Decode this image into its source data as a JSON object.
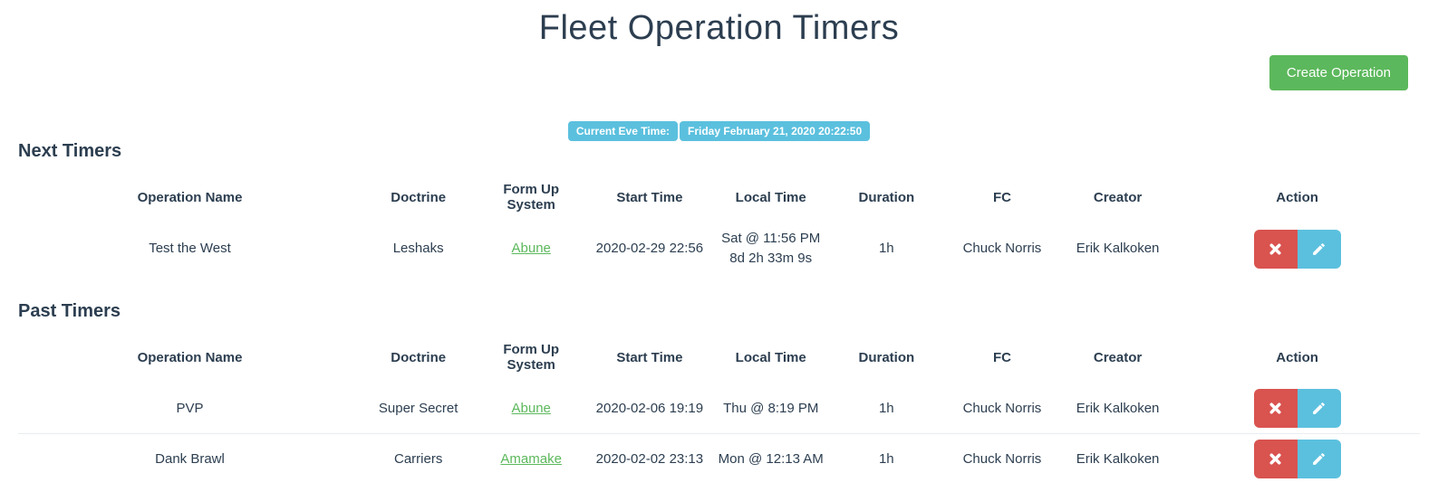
{
  "page": {
    "title": "Fleet Operation Timers"
  },
  "toolbar": {
    "create_button": "Create Operation"
  },
  "eve_time": {
    "label": "Current Eve Time:",
    "value": "Friday February 21, 2020 20:22:50"
  },
  "columns": [
    "Operation Name",
    "Doctrine",
    "Form Up System",
    "Start Time",
    "Local Time",
    "Duration",
    "FC",
    "Creator",
    "Action"
  ],
  "actions": {
    "delete_icon": "x-icon",
    "edit_icon": "pencil-icon"
  },
  "sections": [
    {
      "heading": "Next Timers",
      "rows": [
        {
          "operation": "Test the West",
          "doctrine": "Leshaks",
          "system": "Abune",
          "start": "2020-02-29 22:56",
          "local_time": "Sat @ 11:56 PM",
          "countdown": "8d 2h 33m 9s",
          "duration": "1h",
          "fc": "Chuck Norris",
          "creator": "Erik Kalkoken"
        }
      ]
    },
    {
      "heading": "Past Timers",
      "rows": [
        {
          "operation": "PVP",
          "doctrine": "Super Secret",
          "system": "Abune",
          "start": "2020-02-06 19:19",
          "local_time": "Thu @ 8:19 PM",
          "countdown": "",
          "duration": "1h",
          "fc": "Chuck Norris",
          "creator": "Erik Kalkoken"
        },
        {
          "operation": "Dank Brawl",
          "doctrine": "Carriers",
          "system": "Amamake",
          "start": "2020-02-02 23:13",
          "local_time": "Mon @ 12:13 AM",
          "countdown": "",
          "duration": "1h",
          "fc": "Chuck Norris",
          "creator": "Erik Kalkoken"
        }
      ]
    }
  ],
  "colors": {
    "text": "#2c3e50",
    "success_green": "#5cb85c",
    "info_cyan": "#5bc0de",
    "danger_red": "#d9534f",
    "system_link_green": "#5cb85c",
    "row_border": "#e9eef0"
  }
}
